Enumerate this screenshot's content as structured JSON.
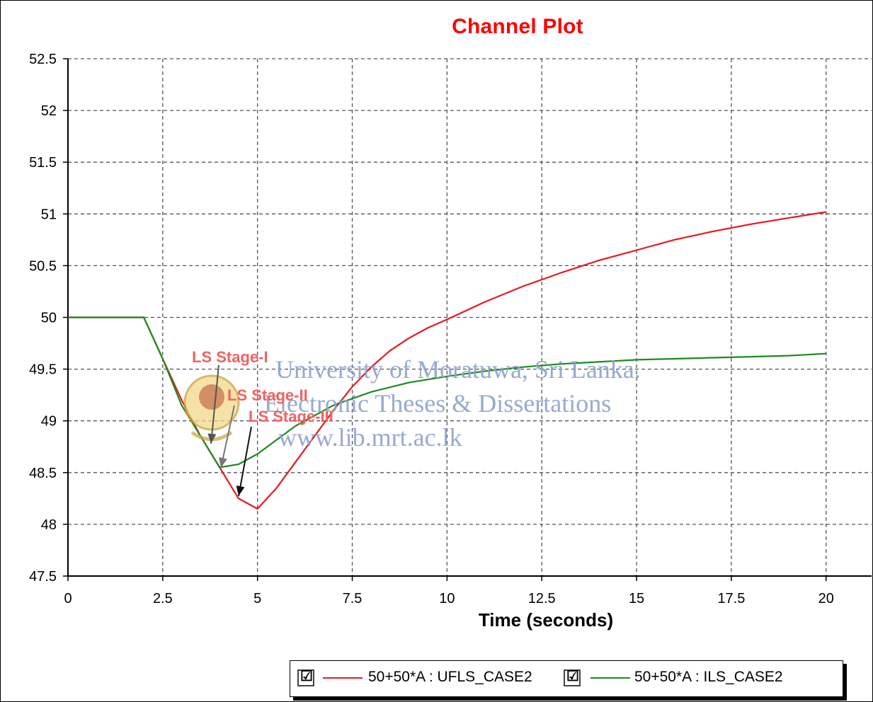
{
  "chart_data": {
    "type": "line",
    "title": "Channel Plot",
    "xlabel": "Time (seconds)",
    "ylabel": "",
    "xlim": [
      0,
      21.2
    ],
    "ylim": [
      47.5,
      52.5
    ],
    "xticks": [
      0,
      2.5,
      5,
      7.5,
      10,
      12.5,
      15,
      17.5,
      20
    ],
    "yticks": [
      47.5,
      48,
      48.5,
      49,
      49.5,
      50,
      50.5,
      51,
      51.5,
      52,
      52.5
    ],
    "grid": true,
    "legend_position": "bottom",
    "series": [
      {
        "name": "50+50*A : UFLS_CASE2",
        "color": "#e8191e",
        "x": [
          0,
          2,
          2.5,
          3,
          3.5,
          4,
          4.5,
          5,
          5.5,
          6,
          6.5,
          7,
          7.5,
          8,
          8.5,
          9,
          9.5,
          10,
          11,
          12,
          13,
          14,
          15,
          16,
          17,
          18,
          19,
          20
        ],
        "y": [
          50,
          50,
          49.6,
          49.2,
          48.85,
          48.55,
          48.25,
          48.15,
          48.35,
          48.6,
          48.85,
          49.1,
          49.33,
          49.52,
          49.68,
          49.8,
          49.9,
          49.98,
          50.15,
          50.3,
          50.43,
          50.55,
          50.65,
          50.75,
          50.83,
          50.9,
          50.96,
          51.02
        ]
      },
      {
        "name": "50+50*A : ILS_CASE2",
        "color": "#1f8a1f",
        "x": [
          0,
          2,
          2.5,
          3,
          3.5,
          4,
          4.5,
          5,
          6,
          7,
          8,
          9,
          10,
          11,
          12,
          13,
          14,
          15,
          16,
          17,
          18,
          19,
          20
        ],
        "y": [
          50,
          50,
          49.6,
          49.15,
          48.85,
          48.55,
          48.58,
          48.68,
          48.95,
          49.15,
          49.28,
          49.37,
          49.43,
          49.48,
          49.52,
          49.55,
          49.57,
          49.59,
          49.6,
          49.61,
          49.62,
          49.63,
          49.65
        ]
      }
    ],
    "annotations": [
      {
        "text": "LS Stage-I"
      },
      {
        "text": "LS Stage-II"
      },
      {
        "text": "LS Stage-III"
      }
    ]
  },
  "watermark": {
    "line1": "University of Moratuwa, Sri Lanka.",
    "line2": "Electronic Theses & Dissertations",
    "line3": "www.lib.mrt.ac.lk"
  },
  "legend": {
    "items": [
      {
        "label": "50+50*A : UFLS_CASE2",
        "checked": "☑"
      },
      {
        "label": "50+50*A : ILS_CASE2",
        "checked": "☑"
      }
    ]
  }
}
